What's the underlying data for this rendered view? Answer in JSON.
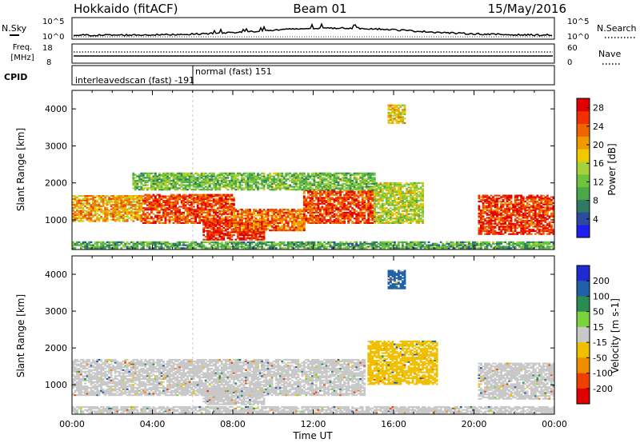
{
  "header": {
    "station": "Hokkaido (fitACF)",
    "beam": "Beam 01",
    "date": "15/May/2016"
  },
  "noise_panel": {
    "left_label": "N.Sky",
    "right_label": "N.Search",
    "left_ticks": [
      "10^5",
      "10^0"
    ],
    "right_ticks": [
      "10^5",
      "10^0"
    ]
  },
  "freq_panel": {
    "left_label_line1": "Freq.",
    "left_label_line2": "[MHz]",
    "left_ticks": [
      "18",
      "8"
    ],
    "right_label": "Nave",
    "right_ticks": [
      "60",
      "0"
    ]
  },
  "cpid_panel": {
    "label": "CPID",
    "modes": [
      {
        "text": "interleavedscan (fast) -191"
      },
      {
        "text": "normal (fast) 151"
      }
    ]
  },
  "time_axis": {
    "label": "Time UT",
    "ticks": [
      "00:00",
      "04:00",
      "08:00",
      "12:00",
      "16:00",
      "20:00",
      "00:00"
    ]
  },
  "chart_data": [
    {
      "type": "heatmap",
      "title": "Power",
      "ylabel": "Slant Range [km]",
      "xlabel": "Time UT",
      "x_unit": "hours UT",
      "xlim": [
        0,
        24
      ],
      "ylim": [
        200,
        4500
      ],
      "yticks": [
        "1000",
        "2000",
        "3000",
        "4000"
      ],
      "colorbar": {
        "label": "Power [dB]",
        "ticks": [
          "4",
          "8",
          "12",
          "16",
          "20",
          "24",
          "28"
        ],
        "range": [
          0,
          30
        ],
        "colors": [
          "#1e1ef0",
          "#2c4a9e",
          "#2f7a63",
          "#4aa84a",
          "#6cc43c",
          "#a4d23c",
          "#f0c800",
          "#f09a00",
          "#f06400",
          "#f03000",
          "#e00000"
        ]
      },
      "regions": [
        {
          "t0": 0.0,
          "t1": 24.0,
          "r0": 220,
          "r1": 420,
          "level": 10
        },
        {
          "t0": 0.0,
          "t1": 3.5,
          "r0": 950,
          "r1": 1650,
          "level": 20
        },
        {
          "t0": 3.5,
          "t1": 8.0,
          "r0": 900,
          "r1": 1700,
          "level": 25
        },
        {
          "t0": 6.5,
          "t1": 9.5,
          "r0": 450,
          "r1": 1000,
          "level": 27
        },
        {
          "t0": 8.0,
          "t1": 11.5,
          "r0": 700,
          "r1": 1300,
          "level": 23
        },
        {
          "t0": 11.5,
          "t1": 15.0,
          "r0": 900,
          "r1": 1800,
          "level": 25
        },
        {
          "t0": 15.0,
          "t1": 17.5,
          "r0": 900,
          "r1": 2000,
          "level": 15
        },
        {
          "t0": 3.0,
          "t1": 15.0,
          "r0": 1800,
          "r1": 2250,
          "level": 12
        },
        {
          "t0": 15.7,
          "t1": 16.6,
          "r0": 3600,
          "r1": 4100,
          "level": 18
        },
        {
          "t0": 20.2,
          "t1": 24.0,
          "r0": 600,
          "r1": 1650,
          "level": 26
        }
      ]
    },
    {
      "type": "heatmap",
      "title": "Velocity",
      "ylabel": "Slant Range [km]",
      "xlabel": "Time UT",
      "x_unit": "hours UT",
      "xlim": [
        0,
        24
      ],
      "ylim": [
        200,
        4500
      ],
      "yticks": [
        "1000",
        "2000",
        "3000",
        "4000"
      ],
      "colorbar": {
        "label": "Velocity [m s-1]",
        "ticks": [
          "200",
          "100",
          "50",
          "15",
          "-15",
          "-50",
          "-100",
          "-200"
        ],
        "colors": [
          "#1e2ad2",
          "#2060a8",
          "#2a8c50",
          "#7ad23c",
          "#c8c8c8",
          "#f0c000",
          "#f08c00",
          "#f04000",
          "#e00000"
        ]
      },
      "regions": [
        {
          "t0": 0.0,
          "t1": 24.0,
          "r0": 220,
          "r1": 420,
          "level": 0
        },
        {
          "t0": 0.0,
          "t1": 14.5,
          "r0": 700,
          "r1": 1700,
          "level": 0
        },
        {
          "t0": 6.5,
          "t1": 9.5,
          "r0": 450,
          "r1": 900,
          "level": 0
        },
        {
          "t0": 14.7,
          "t1": 18.2,
          "r0": 1000,
          "r1": 2200,
          "level": -40
        },
        {
          "t0": 15.7,
          "t1": 16.6,
          "r0": 3600,
          "r1": 4100,
          "level": 120
        },
        {
          "t0": 20.2,
          "t1": 24.0,
          "r0": 600,
          "r1": 1600,
          "level": 0
        }
      ]
    }
  ]
}
